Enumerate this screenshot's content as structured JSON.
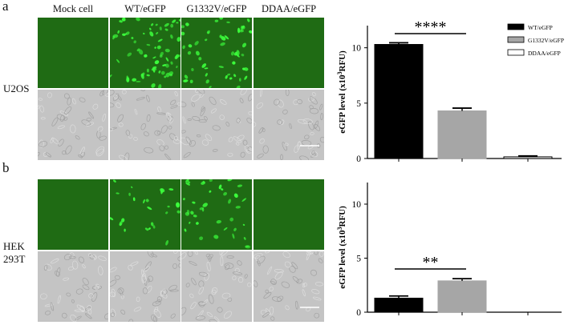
{
  "figure": {
    "panel_letters": [
      "a",
      "b"
    ],
    "columns": [
      "Mock cell",
      "WT/eGFP",
      "G1332V/eGFP",
      "DDAA/eGFP"
    ],
    "rows": [
      {
        "label_lines": [
          "U2OS"
        ]
      },
      {
        "label_lines": [
          "HEK",
          "293T"
        ]
      }
    ],
    "colors": {
      "fluorescence_background": "#1f6b14",
      "cell_signal": "#3cff3c",
      "brightfield": "#c4c4c4",
      "bar_wt": "#000000",
      "bar_g1332v": "#a6a6a6",
      "bar_ddaa": "#ffffff"
    },
    "fluorescence_density": [
      [
        0,
        1.0,
        0.75,
        0
      ],
      [
        0,
        0.35,
        0.55,
        0
      ]
    ]
  },
  "chart_data": [
    {
      "type": "bar",
      "panel": "a",
      "categories": [
        "WT/eGFP",
        "G1332V/eGFP",
        "DDAA/eGFP"
      ],
      "values": [
        10.3,
        4.3,
        0.15
      ],
      "errors": [
        0.15,
        0.25,
        0.08
      ],
      "colors": [
        "#000000",
        "#a6a6a6",
        "#ffffff"
      ],
      "ylabel": "eGFP level (x10",
      "ylabel_sup": "3",
      "ylabel_tail": "RFU)",
      "ylim": [
        0,
        12
      ],
      "yticks": [
        "0",
        "5",
        "10"
      ],
      "ytick_values": [
        0,
        5,
        10
      ],
      "legend": {
        "entries": [
          "WT/eGFP",
          "G1332V/eGFP",
          "DDAA/eGFP"
        ],
        "placement": "top-right"
      },
      "significance": {
        "label": "****",
        "between": [
          0,
          1
        ]
      }
    },
    {
      "type": "bar",
      "panel": "b",
      "categories": [
        "WT/eGFP",
        "G1332V/eGFP",
        "DDAA/eGFP"
      ],
      "values": [
        1.3,
        2.9,
        0
      ],
      "errors": [
        0.2,
        0.2,
        0
      ],
      "colors": [
        "#000000",
        "#a6a6a6",
        "#ffffff"
      ],
      "ylabel": "eGFP level (x10",
      "ylabel_sup": "3",
      "ylabel_tail": "RFU)",
      "ylim": [
        0,
        12
      ],
      "yticks": [
        "0",
        "5",
        "10"
      ],
      "ytick_values": [
        0,
        5,
        10
      ],
      "significance": {
        "label": "**",
        "between": [
          0,
          1
        ]
      }
    }
  ]
}
